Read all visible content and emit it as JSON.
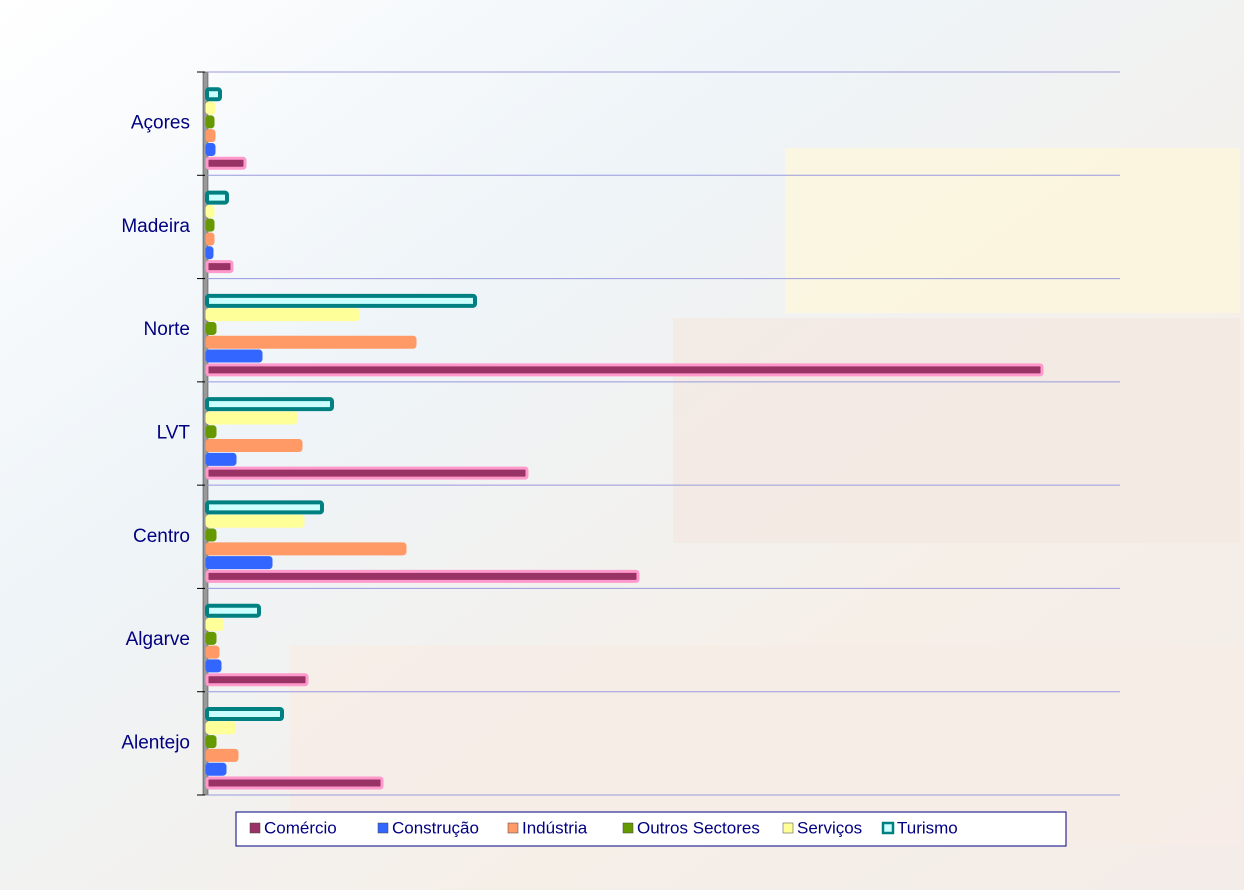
{
  "chart_data": {
    "type": "barh",
    "categories": [
      "Açores",
      "Madeira",
      "Norte",
      "LVT",
      "Centro",
      "Algarve",
      "Alentejo"
    ],
    "series": [
      {
        "name": "Comércio",
        "color": "#993366",
        "values": [
          38,
          25,
          835,
          320,
          431,
          100,
          175
        ]
      },
      {
        "name": "Construção",
        "color": "#3366ff",
        "values": [
          7,
          5,
          54,
          28,
          64,
          13,
          18
        ]
      },
      {
        "name": "Indústria",
        "color": "#ff9966",
        "values": [
          7,
          6,
          208,
          94,
          198,
          11,
          30
        ]
      },
      {
        "name": "Outros Sectores",
        "color": "#669900",
        "values": [
          6,
          6,
          8,
          8,
          8,
          8,
          8
        ]
      },
      {
        "name": "Serviços",
        "color": "#ffff99",
        "values": [
          7,
          6,
          151,
          89,
          96,
          15,
          27
        ]
      },
      {
        "name": "Turismo",
        "color": "#008080",
        "values": [
          13,
          20,
          268,
          125,
          115,
          52,
          75
        ]
      }
    ],
    "legend": "bottom"
  }
}
